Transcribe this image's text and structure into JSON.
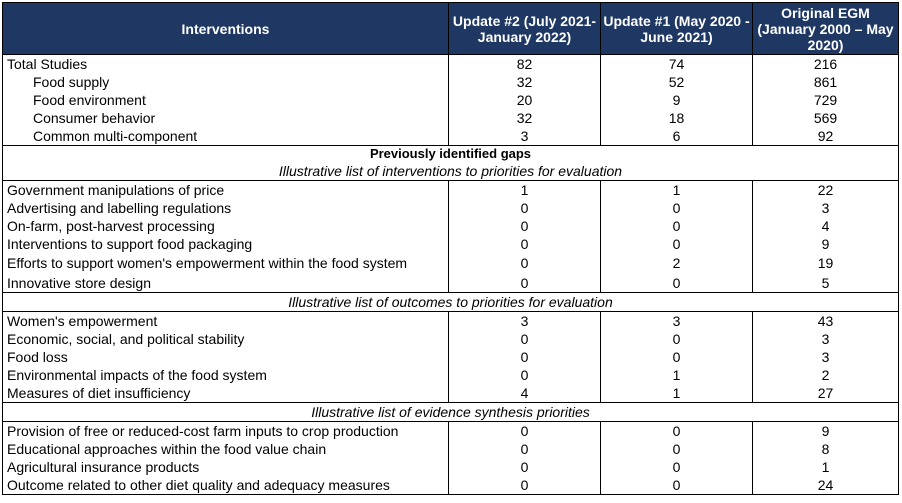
{
  "header": {
    "col1": "Interventions",
    "col2": "Update #2 (July 2021-January 2022)",
    "col3": "Update #1 (May 2020 - June 2021)",
    "col4": "Original EGM (January 2000 – May 2020)"
  },
  "summary": [
    {
      "label": "Total Studies",
      "indent": false,
      "u2": "82",
      "u1": "74",
      "orig": "216"
    },
    {
      "label": "Food supply",
      "indent": true,
      "u2": "32",
      "u1": "52",
      "orig": "861"
    },
    {
      "label": "Food environment",
      "indent": true,
      "u2": "20",
      "u1": "9",
      "orig": "729"
    },
    {
      "label": "Consumer behavior",
      "indent": true,
      "u2": "32",
      "u1": "18",
      "orig": "569"
    },
    {
      "label": "Common multi-component",
      "indent": true,
      "u2": "3",
      "u1": "6",
      "orig": "92"
    }
  ],
  "gaps_title": "Previously identified gaps",
  "interventions_title": "Illustrative list of interventions to priorities for evaluation",
  "interventions": [
    {
      "label": "Government manipulations of price",
      "u2": "1",
      "u1": "1",
      "orig": "22"
    },
    {
      "label": "Advertising and labelling regulations",
      "u2": "0",
      "u1": "0",
      "orig": "3"
    },
    {
      "label": "On-farm, post-harvest processing",
      "u2": "0",
      "u1": "0",
      "orig": "4"
    },
    {
      "label": "Interventions to support food packaging",
      "u2": "0",
      "u1": "0",
      "orig": "9"
    },
    {
      "label": "Efforts to support women's empowerment within the food system",
      "u2": "0",
      "u1": "2",
      "orig": "19"
    },
    {
      "label": "Innovative store design",
      "u2": "0",
      "u1": "0",
      "orig": "5"
    }
  ],
  "outcomes_title": "Illustrative list of outcomes to priorities for evaluation",
  "outcomes": [
    {
      "label": "Women's empowerment",
      "u2": "3",
      "u1": "3",
      "orig": "43"
    },
    {
      "label": "Economic, social, and political stability",
      "u2": "0",
      "u1": "0",
      "orig": "3"
    },
    {
      "label": "Food loss",
      "u2": "0",
      "u1": "0",
      "orig": "3"
    },
    {
      "label": "Environmental impacts of the food system",
      "u2": "0",
      "u1": "1",
      "orig": "2"
    },
    {
      "label": "Measures of diet insufficiency",
      "u2": "4",
      "u1": "1",
      "orig": "27"
    }
  ],
  "synthesis_title": "Illustrative list of evidence synthesis priorities",
  "synthesis": [
    {
      "label": "Provision of free or reduced-cost farm inputs to crop production",
      "u2": "0",
      "u1": "0",
      "orig": "9"
    },
    {
      "label": "Educational approaches within the food value chain",
      "u2": "0",
      "u1": "0",
      "orig": "8"
    },
    {
      "label": "Agricultural insurance products",
      "u2": "0",
      "u1": "0",
      "orig": "1"
    },
    {
      "label": "Outcome related to other diet quality and adequacy measures",
      "u2": "0",
      "u1": "0",
      "orig": "24"
    }
  ]
}
